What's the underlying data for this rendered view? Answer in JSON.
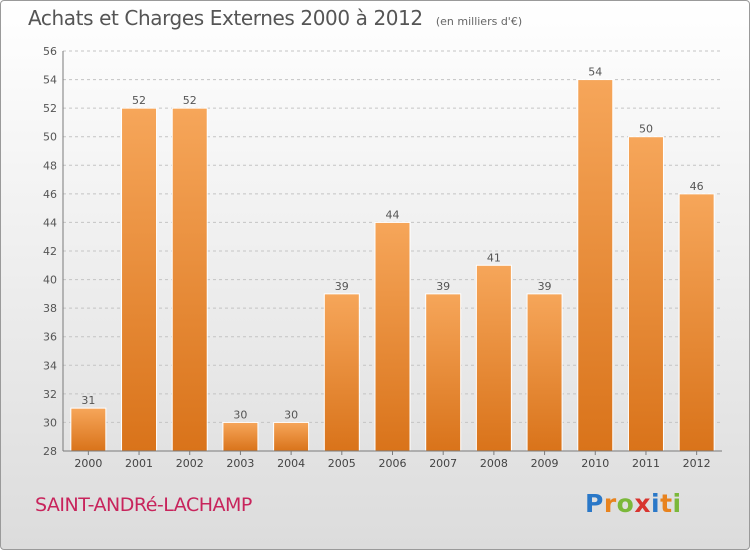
{
  "header": {
    "title": "Achats et Charges Externes 2000 à 2012",
    "subtitle": "(en milliers d'€)"
  },
  "footer": {
    "commune": "SAINT-ANDRé-LACHAMP",
    "logo": {
      "text": "Proxiti",
      "letters": [
        {
          "ch": "P",
          "color": "#2a78c8"
        },
        {
          "ch": "r",
          "color": "#e8831e"
        },
        {
          "ch": "o",
          "color": "#7bb83a"
        },
        {
          "ch": "x",
          "color": "#d8342f"
        },
        {
          "ch": "i",
          "color": "#2a78c8"
        },
        {
          "ch": "t",
          "color": "#e8831e"
        },
        {
          "ch": "i",
          "color": "#7bb83a"
        }
      ]
    }
  },
  "chart_data": {
    "type": "bar",
    "categories": [
      "2000",
      "2001",
      "2002",
      "2003",
      "2004",
      "2005",
      "2006",
      "2007",
      "2008",
      "2009",
      "2010",
      "2011",
      "2012"
    ],
    "values": [
      31,
      52,
      52,
      30,
      30,
      39,
      44,
      39,
      41,
      39,
      54,
      50,
      46
    ],
    "ylim": [
      28,
      56
    ],
    "yticks": [
      28,
      30,
      32,
      34,
      36,
      38,
      40,
      42,
      44,
      46,
      48,
      50,
      52,
      54,
      56
    ],
    "grid": true,
    "data_labels": true,
    "bar_color_light": "#f6a65a",
    "bar_color_dark": "#d9731a",
    "grid_color": "#c4c4c4",
    "axis_color": "#7a7a7a"
  }
}
